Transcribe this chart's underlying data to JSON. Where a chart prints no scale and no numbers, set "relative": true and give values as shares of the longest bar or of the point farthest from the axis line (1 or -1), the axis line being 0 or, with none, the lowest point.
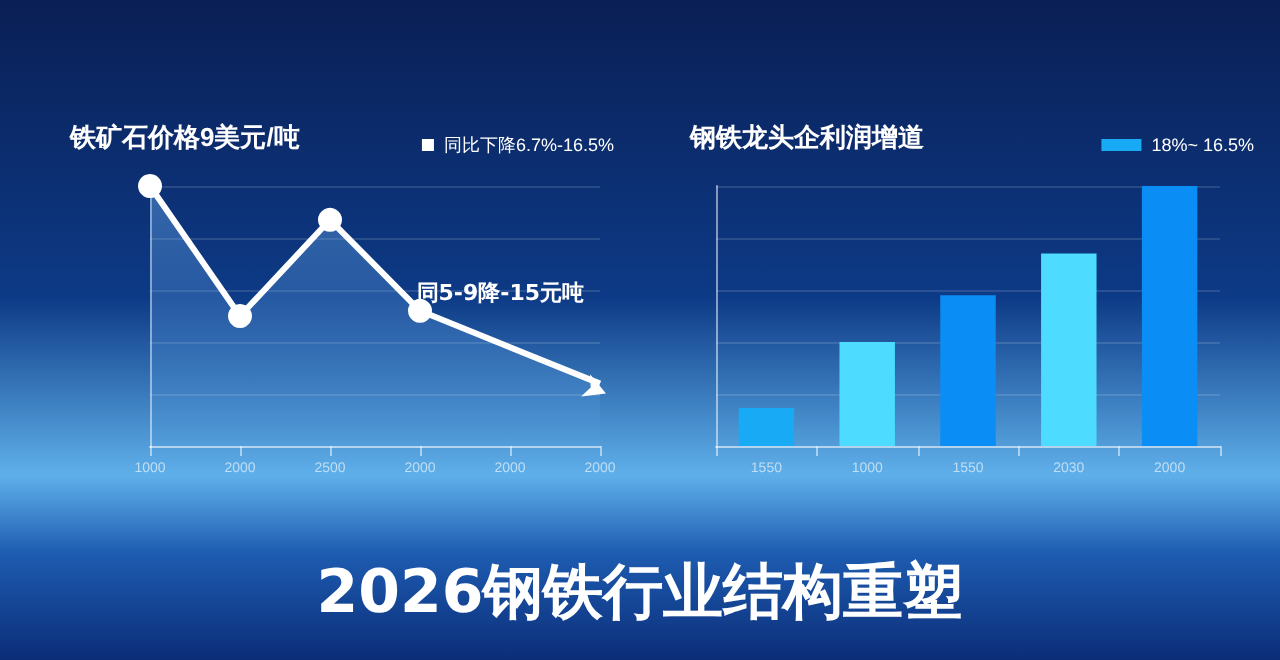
{
  "chart_data": [
    {
      "type": "area",
      "title": "铁矿石价格9美元/吨",
      "categories": [
        "1000",
        "2000",
        "2500",
        "2000",
        "2000",
        "2000"
      ],
      "relative": true,
      "grid": "y",
      "legend": "top right",
      "marker": "circle",
      "annotations": [
        "同5-9降-15元吨"
      ],
      "series": [
        {
          "name": "同比下降6.7%-16.5%",
          "color": "#ffffff",
          "values": [
            1,
            0.5,
            0.87,
            0.52,
            null,
            0.24
          ]
        }
      ]
    },
    {
      "type": "bar",
      "title": "钢铁龙头企利润增道",
      "categories": [
        "1550",
        "1000",
        "1550",
        "2030",
        "2000"
      ],
      "relative": true,
      "grid": "y",
      "legend": "top right",
      "annotations": [
        "2026钢铁行业结构重塑"
      ],
      "series": [
        {
          "name": "18%~ 16.5%",
          "color": "#19aaf5",
          "colors": [
            "#19aaf5",
            "#4ddcff",
            "#0a8ef5",
            "#4ddcff",
            "#0a8ef5"
          ],
          "values": [
            0.146,
            0.4,
            0.58,
            0.74,
            1
          ]
        }
      ]
    }
  ]
}
